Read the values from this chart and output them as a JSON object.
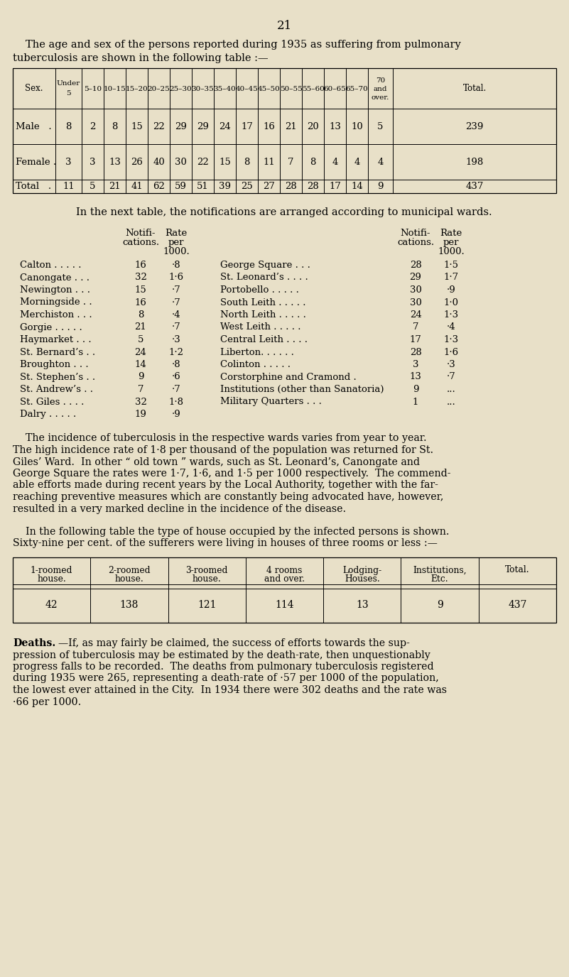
{
  "bg_color": "#e8e0c8",
  "page_number": "21",
  "intro_text1": "The age and sex of the persons reported during 1935 as suffering from pulmonary",
  "intro_text2": "tuberculosis are shown in the following table :—",
  "table1_headers": [
    "Sex.",
    "Under\n5",
    "5–10",
    "10–15",
    "15–20",
    "20–25",
    "25–30",
    "30–35",
    "35–40",
    "40–45",
    "45–50",
    "50–55",
    "55–60",
    "60–65",
    "65–70",
    "70\nand\nover.",
    "Total."
  ],
  "table1_rows": [
    [
      "Male   .",
      "8",
      "2",
      "8",
      "15",
      "22",
      "29",
      "29",
      "24",
      "17",
      "16",
      "21",
      "20",
      "13",
      "10",
      "5",
      "239"
    ],
    [
      "Female .",
      "3",
      "3",
      "13",
      "26",
      "40",
      "30",
      "22",
      "15",
      "8",
      "11",
      "7",
      "8",
      "4",
      "4",
      "4",
      "198"
    ],
    [
      "Total   .",
      "11",
      "5",
      "21",
      "41",
      "62",
      "59",
      "51",
      "39",
      "25",
      "27",
      "28",
      "28",
      "17",
      "14",
      "9",
      "437"
    ]
  ],
  "wards_intro": "In the next table, the notifications are arranged according to municipal wards.",
  "wards_left": [
    {
      "name": "Calton . . . . .",
      "notif": "16",
      "rate": "·8"
    },
    {
      "name": "Canongate . . .",
      "notif": "32",
      "rate": "1·6"
    },
    {
      "name": "Newington . . .",
      "notif": "15",
      "rate": "·7"
    },
    {
      "name": "Morningside . .",
      "notif": "16",
      "rate": "·7"
    },
    {
      "name": "Merchiston . . .",
      "notif": "8",
      "rate": "·4"
    },
    {
      "name": "Gorgie . . . . .",
      "notif": "21",
      "rate": "·7"
    },
    {
      "name": "Haymarket . . .",
      "notif": "5",
      "rate": "·3"
    },
    {
      "name": "St. Bernard’s . .",
      "notif": "24",
      "rate": "1·2"
    },
    {
      "name": "Broughton . . .",
      "notif": "14",
      "rate": "·8"
    },
    {
      "name": "St. Stephen’s . .",
      "notif": "9",
      "rate": "·6"
    },
    {
      "name": "St. Andrew’s . .",
      "notif": "7",
      "rate": "·7"
    },
    {
      "name": "St. Giles . . . .",
      "notif": "32",
      "rate": "1·8"
    },
    {
      "name": "Dalry . . . . .",
      "notif": "19",
      "rate": "·9"
    }
  ],
  "wards_right": [
    {
      "name": "George Square . . .",
      "notif": "28",
      "rate": "1·5"
    },
    {
      "name": "St. Leonard’s . . . .",
      "notif": "29",
      "rate": "1·7"
    },
    {
      "name": "Portobello . . . . .",
      "notif": "30",
      "rate": "·9"
    },
    {
      "name": "South Leith . . . . .",
      "notif": "30",
      "rate": "1·0"
    },
    {
      "name": "North Leith . . . . .",
      "notif": "24",
      "rate": "1·3"
    },
    {
      "name": "West Leith . . . . .",
      "notif": "7",
      "rate": "·4"
    },
    {
      "name": "Central Leith . . . .",
      "notif": "17",
      "rate": "1·3"
    },
    {
      "name": "Liberton. . . . . .",
      "notif": "28",
      "rate": "1·6"
    },
    {
      "name": "Colinton . . . . .",
      "notif": "3",
      "rate": "·3"
    },
    {
      "name": "Corstorphine and Cramond .",
      "notif": "13",
      "rate": "·7"
    },
    {
      "name": "Institutions (other than Sanatoria)",
      "notif": "9",
      "rate": "..."
    },
    {
      "name": "Military Quarters . . .",
      "notif": "1",
      "rate": "..."
    }
  ],
  "incidence_para": [
    "    The incidence of tuberculosis in the respective wards varies from year to year.",
    "The high incidence rate of 1·8 per thousand of the population was returned for St.",
    "Giles’ Ward.  In other “ old town ” wards, such as St. Leonard’s, Canongate and",
    "George Square the rates were 1·7, 1·6, and 1·5 per 1000 respectively.  The commend-",
    "able efforts made during recent years by the Local Authority, together with the far-",
    "reaching preventive measures which are constantly being advocated have, however,",
    "resulted in a very marked decline in the incidence of the disease."
  ],
  "house_intro1": "    In the following table the type of house occupied by the infected persons is shown.",
  "house_intro2": "Sixty-nine per cent. of the sufferers were living in houses of three rooms or less :—",
  "table3_headers": [
    "1-roomed\nhouse.",
    "2-roomed\nhouse.",
    "3-roomed\nhouse.",
    "4 rooms\nand over.",
    "Lodging-\nHouses.",
    "Institutions,\nEtc.",
    "Total."
  ],
  "table3_values": [
    "42",
    "138",
    "121",
    "114",
    "13",
    "9",
    "437"
  ],
  "deaths_bold": "Deaths.",
  "deaths_line1_rest": "—If, as may fairly be claimed, the success of efforts towards the sup-",
  "deaths_rest": [
    "pression of tuberculosis may be estimated by the death-rate, then unquestionably",
    "progress falls to be recorded.  The deaths from pulmonary tuberculosis registered",
    "during 1935 were 265, representing a death-rate of ·57 per 1000 of the population,",
    "the lowest ever attained in the City.  In 1934 there were 302 deaths and the rate was",
    "·66 per 1000."
  ]
}
